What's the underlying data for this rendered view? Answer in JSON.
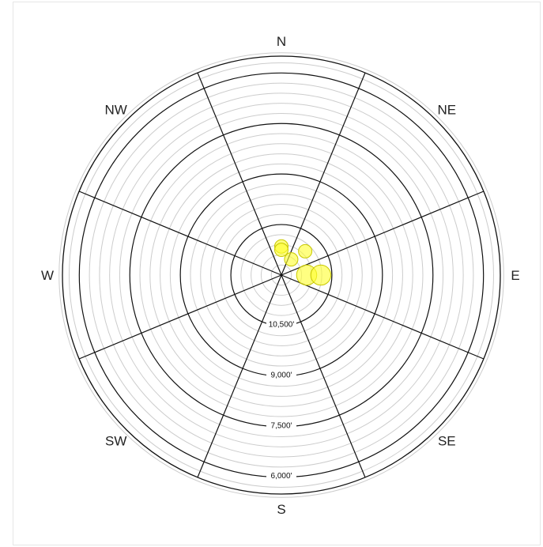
{
  "chart_data": {
    "type": "scatter",
    "projection": "polar",
    "angle_axis": "aspect",
    "radial_axis": "elevation",
    "direction_labels": [
      "N",
      "NE",
      "E",
      "SE",
      "S",
      "SW",
      "W",
      "NW"
    ],
    "elevation_labels": [
      {
        "text": "10,500'",
        "value": 10500
      },
      {
        "text": "9,000'",
        "value": 9000
      },
      {
        "text": "7,500'",
        "value": 7500
      },
      {
        "text": "6,000'",
        "value": 6000
      }
    ],
    "center_elevation": 12000,
    "outer_elevation": 5500,
    "ring_step": 300,
    "major_ring_step": 1500,
    "sector_count": 8,
    "points": [
      {
        "bearing": 0,
        "elevation": 11150,
        "size": 1
      },
      {
        "bearing": 0,
        "elevation": 11250,
        "size": 1
      },
      {
        "bearing": 32,
        "elevation": 11450,
        "size": 1
      },
      {
        "bearing": 45,
        "elevation": 11000,
        "size": 1
      },
      {
        "bearing": 90,
        "elevation": 11250,
        "size": 1.5
      },
      {
        "bearing": 90,
        "elevation": 10830,
        "size": 1.5
      }
    ],
    "grid": true,
    "colors": {
      "point_fill": "#ffff33",
      "point_stroke": "#c8c800",
      "major_ring": "#111111",
      "minor_ring": "#cccccc",
      "spoke": "#111111"
    }
  }
}
